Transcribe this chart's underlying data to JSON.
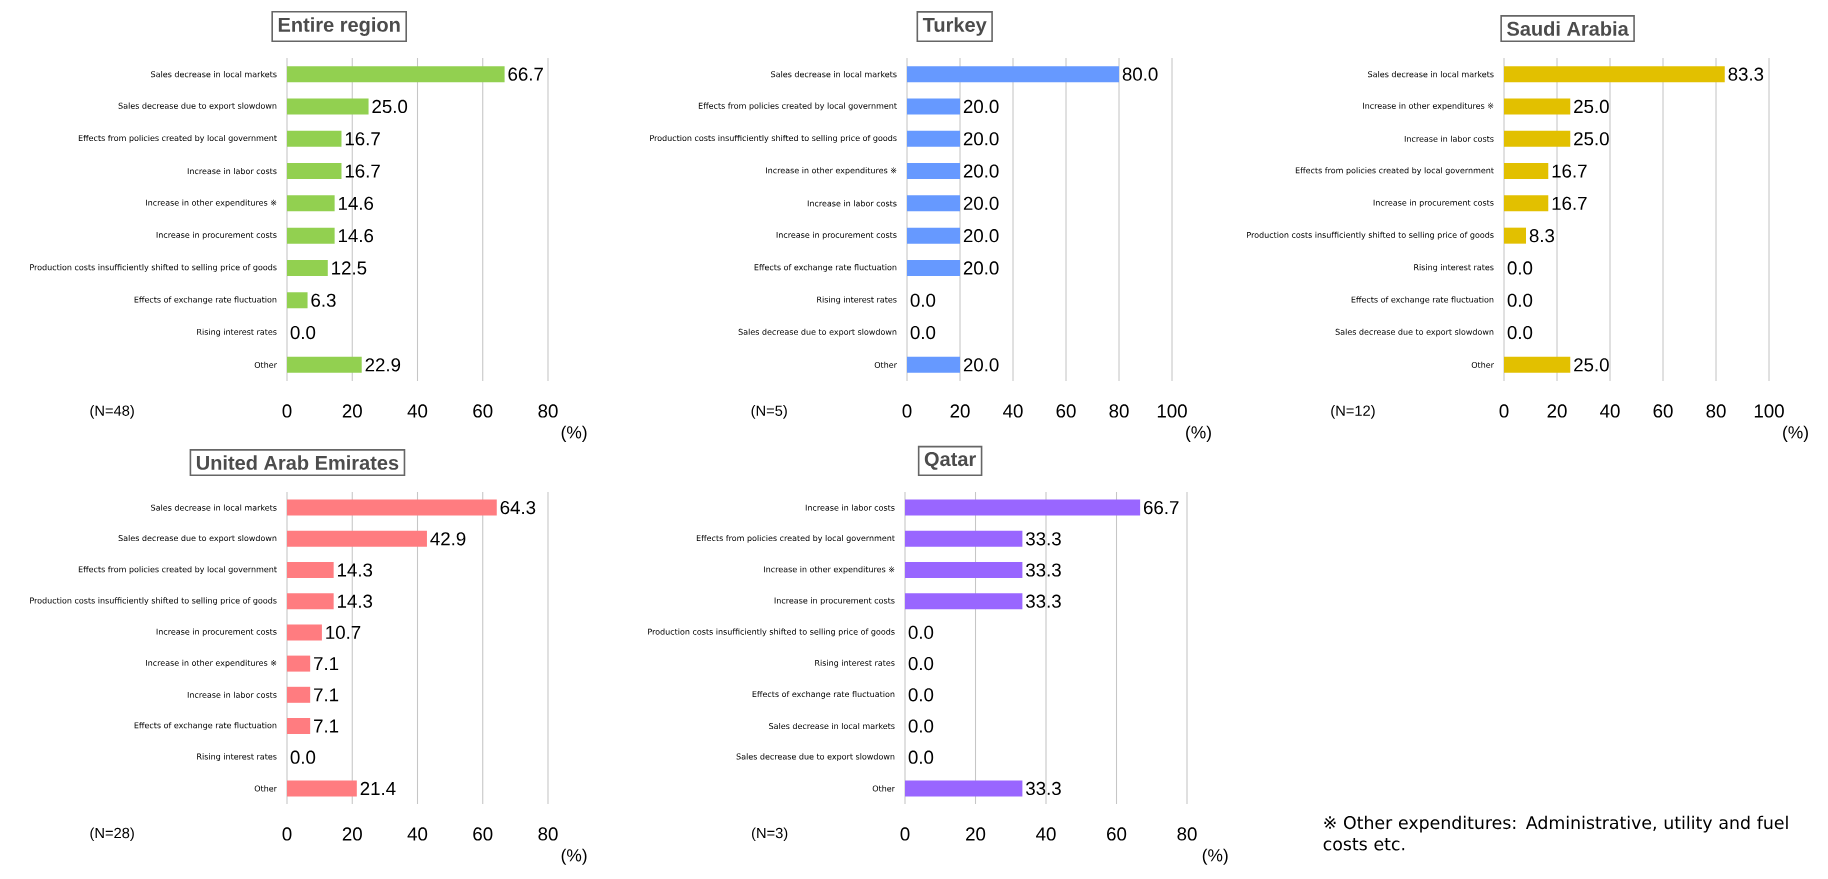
{
  "chart_data": [
    {
      "type": "bar",
      "orientation": "horizontal",
      "title": "Entire region",
      "xlabel": "(%)",
      "color": "#92d050",
      "grid": "x",
      "xlim": [
        0,
        80
      ],
      "xticks": [
        0,
        20,
        40,
        60,
        80
      ],
      "annotations": [
        "(N=48)"
      ],
      "categories": [
        "Sales decrease in local markets",
        "Sales decrease due to export slowdown",
        "Effects from policies created by local government",
        "Increase in labor costs",
        "Increase in other expenditures ※",
        "Increase in procurement costs",
        "Production costs insufficiently shifted to selling price of goods",
        "Effects of exchange rate fluctuation",
        "Rising interest rates",
        "Other"
      ],
      "values": [
        66.7,
        25.0,
        16.7,
        16.7,
        14.6,
        14.6,
        12.5,
        6.3,
        0.0,
        22.9
      ],
      "value_labels": [
        "66.7",
        "25.0",
        "16.7",
        "16.7",
        "14.6",
        "14.6",
        "12.5",
        "6.3",
        "0.0",
        "22.9"
      ]
    },
    {
      "type": "bar",
      "orientation": "horizontal",
      "title": "Turkey",
      "xlabel": "(%)",
      "color": "#6699ff",
      "grid": "x",
      "xlim": [
        0,
        100
      ],
      "xticks": [
        0,
        20,
        40,
        60,
        80,
        100
      ],
      "annotations": [
        "(N=5)"
      ],
      "categories": [
        "Sales decrease in local markets",
        "Effects from policies created by local government",
        "Production costs insufficiently shifted to selling price of goods",
        "Increase in other expenditures ※",
        "Increase in labor costs",
        "Increase in procurement costs",
        "Effects of exchange rate fluctuation",
        "Rising interest rates",
        "Sales decrease due to export slowdown",
        "Other"
      ],
      "values": [
        80.0,
        20.0,
        20.0,
        20.0,
        20.0,
        20.0,
        20.0,
        0.0,
        0.0,
        20.0
      ],
      "value_labels": [
        "80.0",
        "20.0",
        "20.0",
        "20.0",
        "20.0",
        "20.0",
        "20.0",
        "0.0",
        "0.0",
        "20.0"
      ]
    },
    {
      "type": "bar",
      "orientation": "horizontal",
      "title": "Saudi Arabia",
      "xlabel": "(%)",
      "color": "#e2c000",
      "grid": "x",
      "xlim": [
        0,
        100
      ],
      "xticks": [
        0,
        20,
        40,
        60,
        80,
        100
      ],
      "annotations": [
        "(N=12)"
      ],
      "categories": [
        "Sales decrease in local markets",
        "Increase in other expenditures ※",
        "Increase in labor costs",
        "Effects from policies created by local government",
        "Increase in procurement costs",
        "Production costs insufficiently shifted to selling price of goods",
        "Rising interest rates",
        "Effects of exchange rate fluctuation",
        "Sales decrease due to export slowdown",
        "Other"
      ],
      "values": [
        83.3,
        25.0,
        25.0,
        16.7,
        16.7,
        8.3,
        0.0,
        0.0,
        0.0,
        25.0
      ],
      "value_labels": [
        "83.3",
        "25.0",
        "25.0",
        "16.7",
        "16.7",
        "8.3",
        "0.0",
        "0.0",
        "0.0",
        "25.0"
      ]
    },
    {
      "type": "bar",
      "orientation": "horizontal",
      "title": "United Arab Emirates",
      "xlabel": "(%)",
      "color": "#ff7c80",
      "grid": "x",
      "xlim": [
        0,
        80
      ],
      "xticks": [
        0,
        20,
        40,
        60,
        80
      ],
      "annotations": [
        "(N=28)"
      ],
      "categories": [
        "Sales decrease in local markets",
        "Sales decrease due to export slowdown",
        "Effects from policies created by local government",
        "Production costs insufficiently shifted to selling price of goods",
        "Increase in procurement costs",
        "Increase in other expenditures ※",
        "Increase in labor costs",
        "Effects of exchange rate fluctuation",
        "Rising interest rates",
        "Other"
      ],
      "values": [
        64.3,
        42.9,
        14.3,
        14.3,
        10.7,
        7.1,
        7.1,
        7.1,
        0.0,
        21.4
      ],
      "value_labels": [
        "64.3",
        "42.9",
        "14.3",
        "14.3",
        "10.7",
        "7.1",
        "7.1",
        "7.1",
        "0.0",
        "21.4"
      ]
    },
    {
      "type": "bar",
      "orientation": "horizontal",
      "title": "Qatar",
      "xlabel": "(%)",
      "color": "#9966ff",
      "grid": "x",
      "xlim": [
        0,
        80
      ],
      "xticks": [
        0,
        20,
        40,
        60,
        80
      ],
      "annotations": [
        "(N=3)"
      ],
      "categories": [
        "Increase in labor costs",
        "Effects from policies created by local government",
        "Increase in other expenditures ※",
        "Increase in procurement costs",
        "Production costs insufficiently shifted to selling price of goods",
        "Rising interest rates",
        "Effects of exchange rate fluctuation",
        "Sales decrease in local markets",
        "Sales decrease due to export slowdown",
        "Other"
      ],
      "values": [
        66.7,
        33.3,
        33.3,
        33.3,
        0.0,
        0.0,
        0.0,
        0.0,
        0.0,
        33.3
      ],
      "value_labels": [
        "66.7",
        "33.3",
        "33.3",
        "33.3",
        "0.0",
        "0.0",
        "0.0",
        "0.0",
        "0.0",
        "33.3"
      ]
    },
    {
      "type": "other",
      "annotations": [
        "※ Other expenditures: Administrative, utility and fuel costs etc."
      ]
    }
  ]
}
